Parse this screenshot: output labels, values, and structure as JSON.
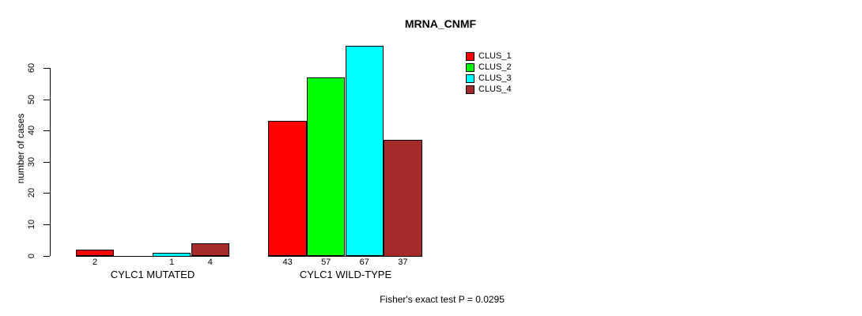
{
  "chart_data": {
    "type": "bar",
    "title": "MRNA_CNMF",
    "ylabel": "number of cases",
    "xlabel": "",
    "ylim": [
      0,
      60
    ],
    "yticks": [
      0,
      10,
      20,
      30,
      40,
      50,
      60
    ],
    "grid": false,
    "legend_position": "inside-top-right",
    "categories": [
      "CYLC1 MUTATED",
      "CYLC1 WILD-TYPE"
    ],
    "series": [
      {
        "name": "CLUS_1",
        "color": "#FF0000",
        "values": [
          2,
          43
        ]
      },
      {
        "name": "CLUS_2",
        "color": "#00FF00",
        "values": [
          0,
          57
        ]
      },
      {
        "name": "CLUS_3",
        "color": "#00FFFF",
        "values": [
          1,
          67
        ]
      },
      {
        "name": "CLUS_4",
        "color": "#A52A2A",
        "values": [
          4,
          37
        ]
      }
    ],
    "bar_value_labels": {
      "shown": true,
      "zeros_hidden": true
    },
    "annotation": "Fisher's exact test P = 0.0295",
    "axis_color": "#000000",
    "background_color": "#FFFFFF"
  }
}
